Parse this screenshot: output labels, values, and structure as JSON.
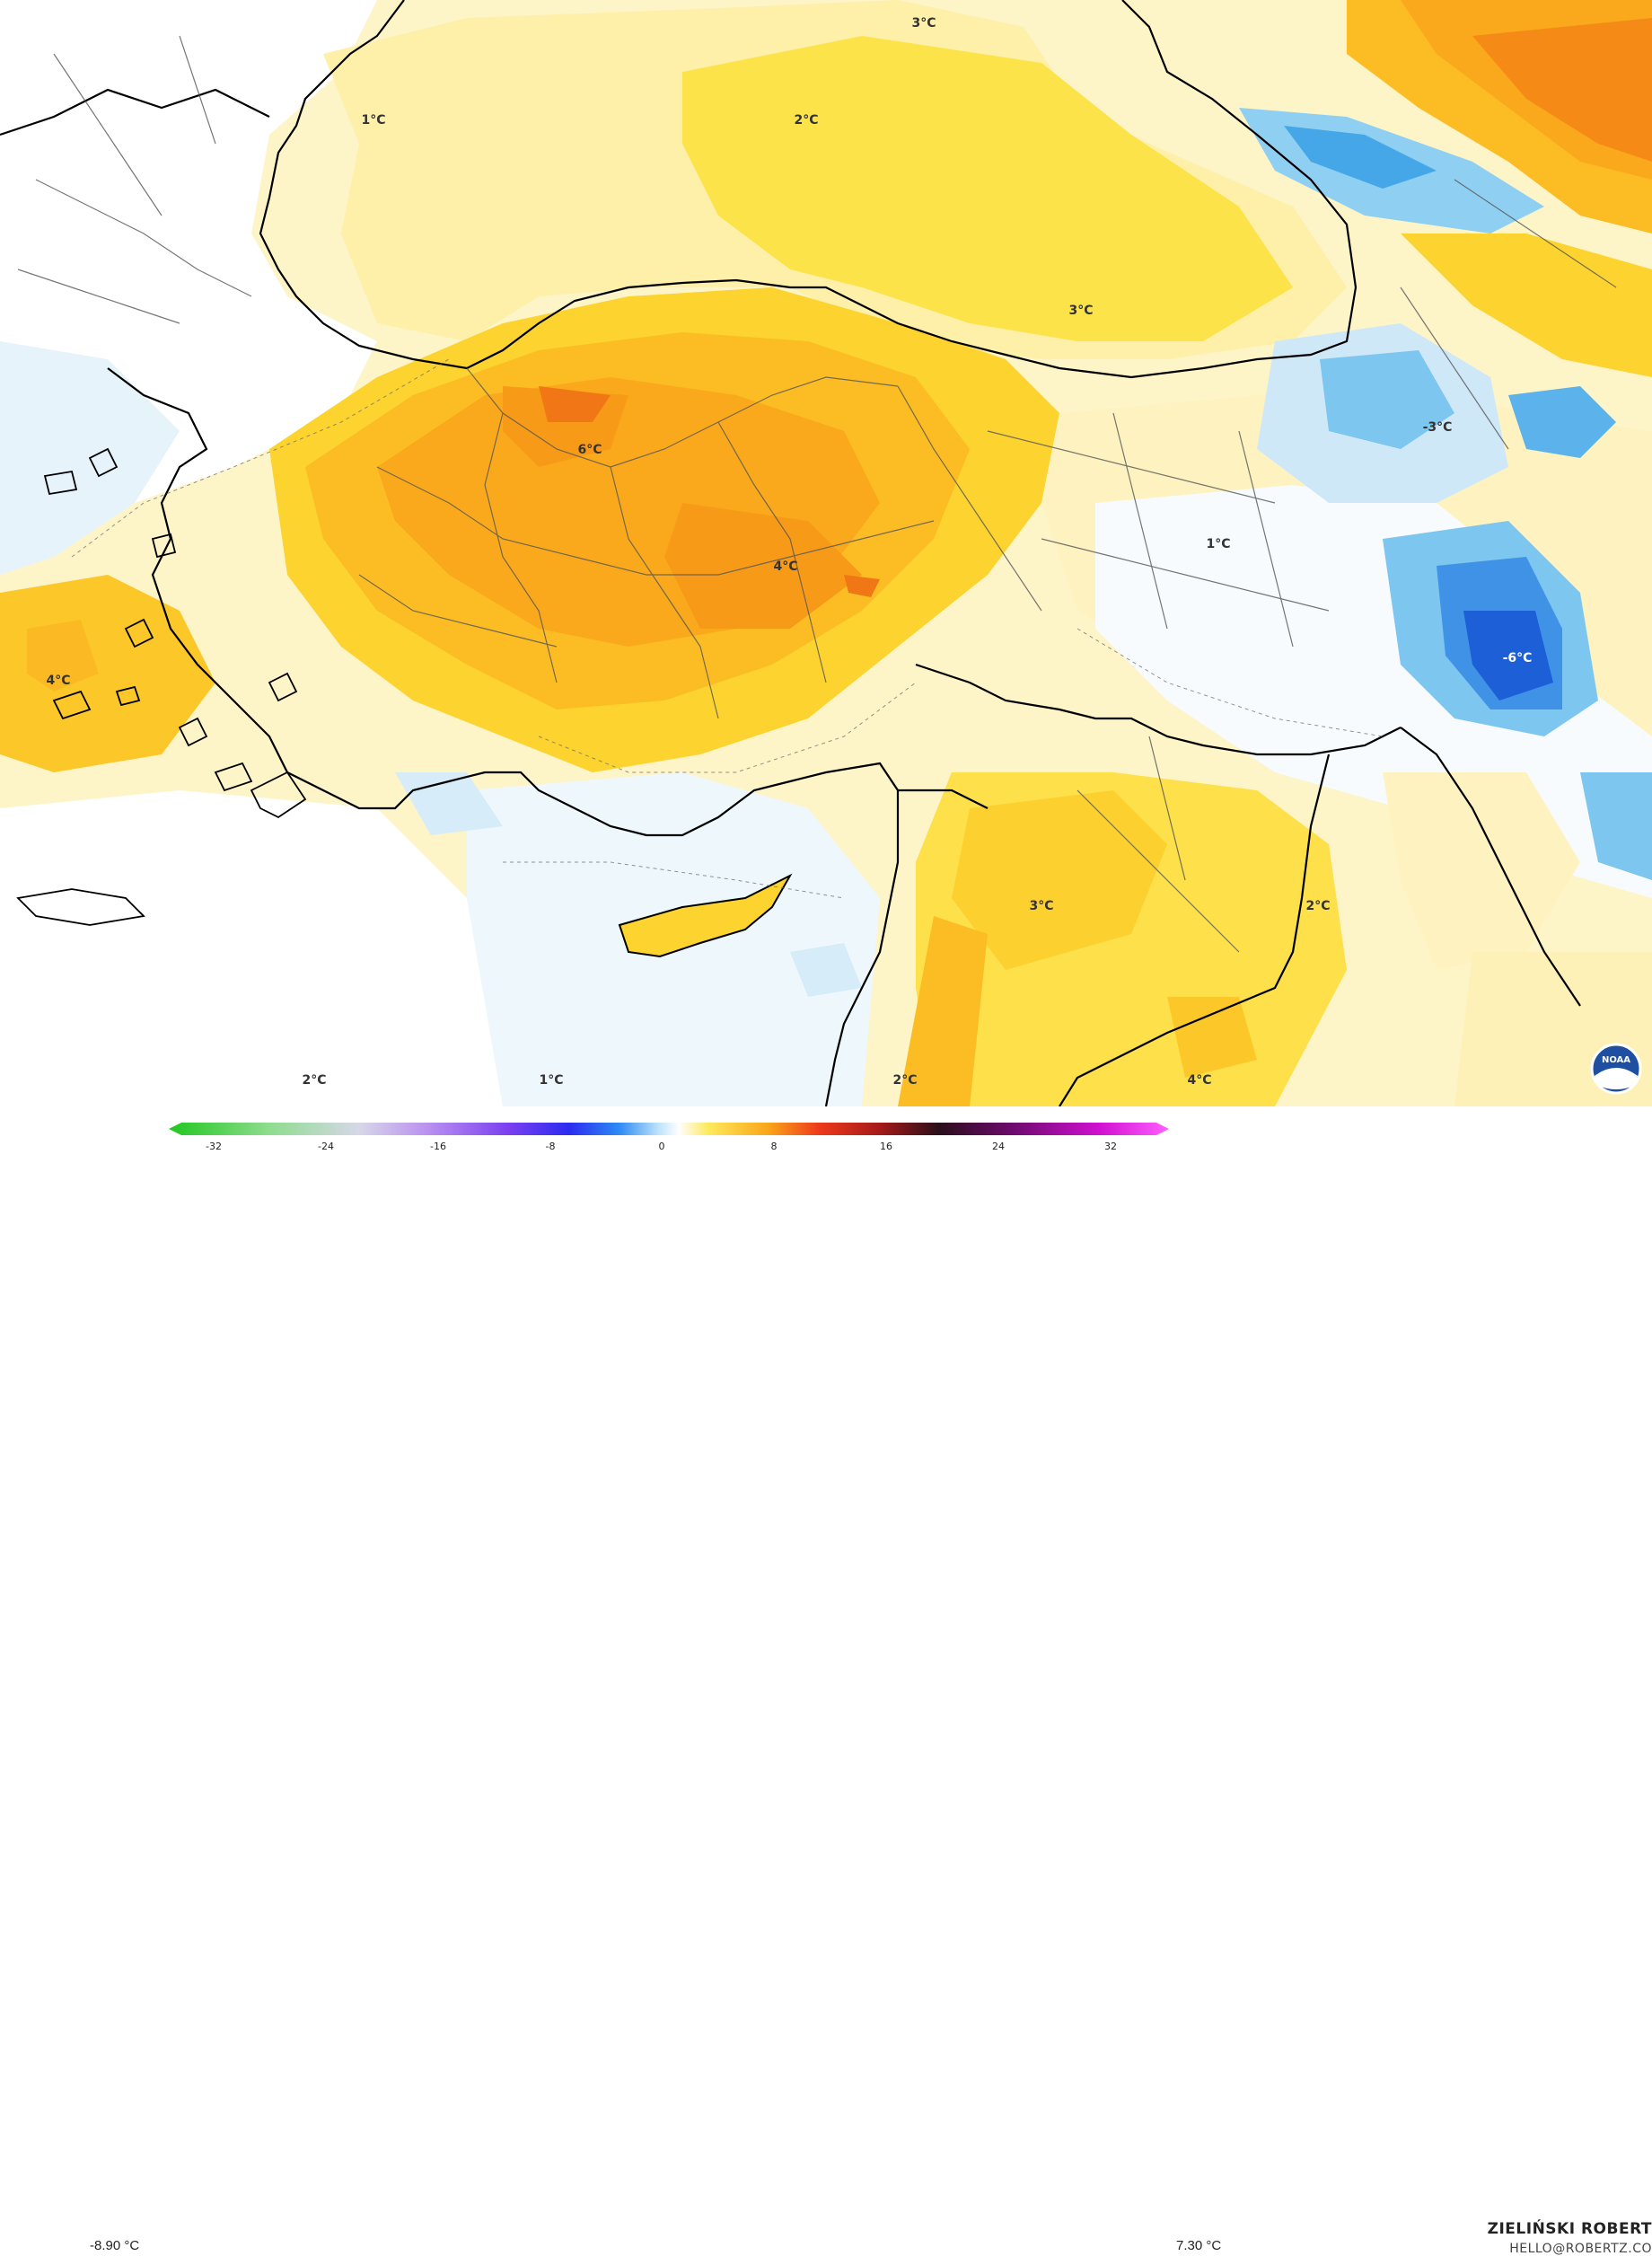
{
  "map": {
    "labels": [
      "1°C",
      "2°C",
      "3°C",
      "3°C",
      "6°C",
      "4°C",
      "1°C",
      "-3°C",
      "-6°C",
      "4°C",
      "3°C",
      "2°C",
      "2°C",
      "1°C",
      "2°C",
      "4°C"
    ]
  },
  "legend": {
    "min_label": "-8.90 °C",
    "max_label": "7.30 °C",
    "ticks": [
      "-32",
      "-24",
      "-16",
      "-8",
      "0",
      "8",
      "16",
      "24",
      "32"
    ]
  },
  "branding": {
    "name": "ZIELIŃSKI ROBERT",
    "email": "HELLO@ROBERTZ.CO",
    "logo_text": "NOAA"
  },
  "colors": {
    "light_yellow": "#fdf0b4",
    "yellow": "#fde44f",
    "gold": "#fcc829",
    "orange": "#f9a418",
    "deep_orange": "#f47b14",
    "light_blue": "#dff0fb",
    "blue": "#5fbdee",
    "dark_blue": "#1e6fdc"
  }
}
